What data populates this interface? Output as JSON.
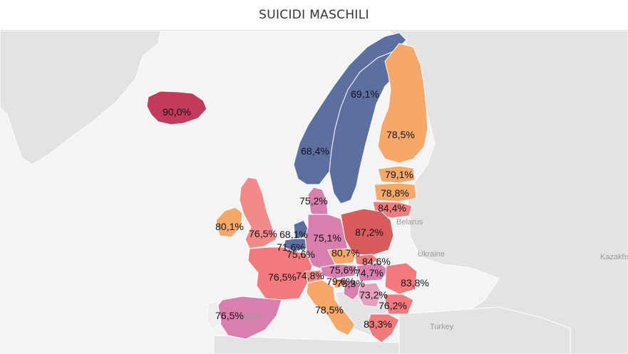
{
  "title": "SUICIDI MASCHILI",
  "background_labels": {
    "belarus": "Belarus",
    "ukraine": "Ukraine",
    "kazakhstan": "Kazakhs",
    "turkey": "Turkey",
    "spain": "Spain"
  },
  "colors": {
    "low": "#5b6fa0",
    "mid_low": "#d97fae",
    "mid": "#f27a7c",
    "mid_high": "#f5a868",
    "high": "#c43a5a"
  },
  "countries": {
    "iceland": "90,0%",
    "norway": "68,4%",
    "sweden": "69,1%",
    "finland": "78,5%",
    "estonia": "79,1%",
    "latvia": "78,8%",
    "lithuania": "84,4%",
    "denmark": "75,2%",
    "ireland": "80,1%",
    "united_kingdom": "76,5%",
    "netherlands": "68,1%",
    "belgium": "71,6%",
    "germany": "75,1%",
    "poland": "87,2%",
    "luxembourg": "75,6%",
    "czechia": "80,7%",
    "slovakia": "84,6%",
    "austria": "75,6%",
    "hungary": "74,7%",
    "slovenia": "79,6%",
    "croatia": "75,3%",
    "romania": "83,8%",
    "france": "76,5%",
    "switzerland": "74,8%",
    "serbia": "73,2%",
    "bulgaria": "76,2%",
    "spain": "76,5%",
    "italy": "78,5%",
    "greece": "83,3%"
  }
}
